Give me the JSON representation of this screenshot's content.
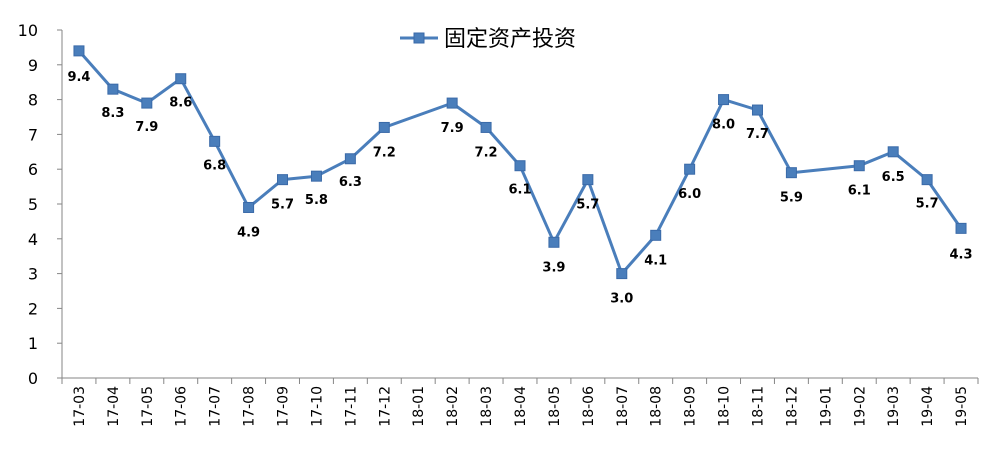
{
  "chart_data": {
    "type": "line",
    "x": [
      "17-03",
      "17-04",
      "17-05",
      "17-06",
      "17-07",
      "17-08",
      "17-09",
      "17-10",
      "17-11",
      "17-12",
      "18-01",
      "18-02",
      "18-03",
      "18-04",
      "18-05",
      "18-06",
      "18-07",
      "18-08",
      "18-09",
      "18-10",
      "18-11",
      "18-12",
      "19-01",
      "19-02",
      "19-03",
      "19-04",
      "19-05"
    ],
    "series": [
      {
        "name": "固定资产投资",
        "color": "#4a7ebb",
        "values": [
          9.4,
          8.3,
          7.9,
          8.6,
          6.8,
          4.9,
          5.7,
          5.8,
          6.3,
          7.2,
          null,
          7.9,
          7.2,
          6.1,
          3.9,
          5.7,
          3.0,
          4.1,
          6.0,
          8.0,
          7.7,
          5.9,
          null,
          6.1,
          6.5,
          5.7,
          4.3
        ],
        "labels": [
          "9.4",
          "8.3",
          "7.9",
          "8.6",
          "6.8",
          "4.9",
          "5.7",
          "5.8",
          "6.3",
          "7.2",
          null,
          "7.9",
          "7.2",
          "6.1",
          "3.9",
          "5.7",
          "3.0",
          "4.1",
          "6.0",
          "8.0",
          "7.7",
          "5.9",
          null,
          "6.1",
          "6.5",
          "5.7",
          "4.3"
        ]
      }
    ],
    "ylim": [
      0,
      10
    ],
    "yticks": [
      "0",
      "1",
      "2",
      "3",
      "4",
      "5",
      "6",
      "7",
      "8",
      "9",
      "10"
    ],
    "grid": false,
    "legend": "top-center",
    "title": "",
    "xlabel": "",
    "ylabel": ""
  }
}
